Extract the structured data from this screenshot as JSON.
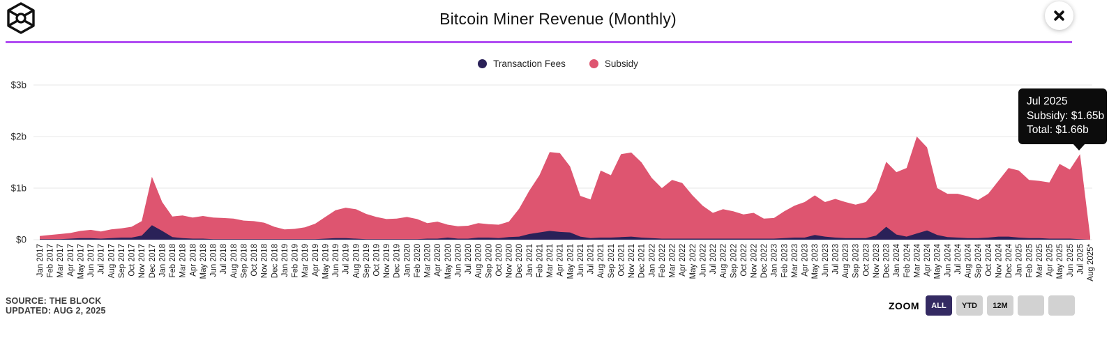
{
  "header": {
    "title": "Bitcoin Miner Revenue (Monthly)"
  },
  "legend": {
    "items": [
      {
        "label": "Transaction Fees",
        "color": "#2a2158"
      },
      {
        "label": "Subsidy",
        "color": "#de5570"
      }
    ]
  },
  "tooltip": {
    "date": "Jul 2025",
    "subsidy_line": "Subsidy: $1.65b",
    "total_line": "Total: $1.66b"
  },
  "footer": {
    "source": "SOURCE: THE BLOCK",
    "updated": "UPDATED: AUG 2, 2025"
  },
  "zoom_controls": {
    "label": "ZOOM",
    "buttons": [
      {
        "label": "ALL",
        "active": true
      },
      {
        "label": "YTD",
        "active": false
      },
      {
        "label": "12M",
        "active": false
      },
      {
        "label": "",
        "active": false
      },
      {
        "label": "",
        "active": false
      }
    ]
  },
  "colors": {
    "divider": "#b04cf2",
    "active_button_bg": "#342a62",
    "grid": "#e7e7e7",
    "axis_text": "#2e2e2e"
  },
  "chart_data": {
    "type": "area",
    "stacked": true,
    "title": "Bitcoin Miner Revenue (Monthly)",
    "xlabel": "",
    "ylabel": "",
    "ylim": [
      0,
      3
    ],
    "grid": "horizontal",
    "legend_position": "top",
    "yticks": [
      {
        "value": 0,
        "label": "$0"
      },
      {
        "value": 1,
        "label": "$1b"
      },
      {
        "value": 2,
        "label": "$2b"
      },
      {
        "value": 3,
        "label": "$3b"
      }
    ],
    "unit": "$ billions",
    "categories": [
      "Jan 2017",
      "Feb 2017",
      "Mar 2017",
      "Apr 2017",
      "May 2017",
      "Jun 2017",
      "Jul 2017",
      "Aug 2017",
      "Sep 2017",
      "Oct 2017",
      "Nov 2017",
      "Dec 2017",
      "Jan 2018",
      "Feb 2018",
      "Mar 2018",
      "Apr 2018",
      "May 2018",
      "Jun 2018",
      "Jul 2018",
      "Aug 2018",
      "Sep 2018",
      "Oct 2018",
      "Nov 2018",
      "Dec 2018",
      "Jan 2019",
      "Feb 2019",
      "Mar 2019",
      "Apr 2019",
      "May 2019",
      "Jun 2019",
      "Jul 2019",
      "Aug 2019",
      "Sep 2019",
      "Oct 2019",
      "Nov 2019",
      "Dec 2019",
      "Jan 2020",
      "Feb 2020",
      "Mar 2020",
      "Apr 2020",
      "May 2020",
      "Jun 2020",
      "Jul 2020",
      "Aug 2020",
      "Sep 2020",
      "Oct 2020",
      "Nov 2020",
      "Dec 2020",
      "Jan 2021",
      "Feb 2021",
      "Mar 2021",
      "Apr 2021",
      "May 2021",
      "Jun 2021",
      "Jul 2021",
      "Aug 2021",
      "Sep 2021",
      "Oct 2021",
      "Nov 2021",
      "Dec 2021",
      "Jan 2022",
      "Feb 2022",
      "Mar 2022",
      "Apr 2022",
      "May 2022",
      "Jun 2022",
      "Jul 2022",
      "Aug 2022",
      "Sep 2022",
      "Oct 2022",
      "Nov 2022",
      "Dec 2022",
      "Jan 2023",
      "Feb 2023",
      "Mar 2023",
      "Apr 2023",
      "May 2023",
      "Jun 2023",
      "Jul 2023",
      "Aug 2023",
      "Sep 2023",
      "Oct 2023",
      "Nov 2023",
      "Dec 2023",
      "Jan 2024",
      "Feb 2024",
      "Mar 2024",
      "Apr 2024",
      "May 2024",
      "Jun 2024",
      "Jul 2024",
      "Aug 2024",
      "Sep 2024",
      "Oct 2024",
      "Nov 2024",
      "Dec 2024",
      "Jan 2025",
      "Feb 2025",
      "Mar 2025",
      "Apr 2025",
      "May 2025",
      "Jun 2025",
      "Jul 2025",
      "Aug 2025*"
    ],
    "series": [
      {
        "name": "Transaction Fees",
        "color": "#2a2158",
        "values": [
          0.01,
          0.01,
          0.01,
          0.02,
          0.03,
          0.03,
          0.02,
          0.03,
          0.04,
          0.04,
          0.08,
          0.28,
          0.17,
          0.05,
          0.03,
          0.02,
          0.02,
          0.01,
          0.01,
          0.01,
          0.01,
          0.01,
          0.01,
          0.01,
          0.01,
          0.01,
          0.01,
          0.01,
          0.02,
          0.03,
          0.03,
          0.02,
          0.01,
          0.01,
          0.01,
          0.01,
          0.01,
          0.01,
          0.02,
          0.02,
          0.04,
          0.02,
          0.02,
          0.04,
          0.04,
          0.03,
          0.05,
          0.06,
          0.11,
          0.14,
          0.17,
          0.15,
          0.14,
          0.06,
          0.03,
          0.04,
          0.04,
          0.05,
          0.06,
          0.04,
          0.03,
          0.02,
          0.02,
          0.02,
          0.02,
          0.02,
          0.02,
          0.02,
          0.02,
          0.02,
          0.02,
          0.02,
          0.02,
          0.03,
          0.04,
          0.04,
          0.09,
          0.06,
          0.04,
          0.03,
          0.03,
          0.03,
          0.08,
          0.25,
          0.1,
          0.06,
          0.12,
          0.18,
          0.09,
          0.05,
          0.04,
          0.03,
          0.03,
          0.04,
          0.06,
          0.06,
          0.04,
          0.03,
          0.03,
          0.02,
          0.02,
          0.02,
          0.01,
          0.0
        ]
      },
      {
        "name": "Subsidy",
        "color": "#de5570",
        "values": [
          0.06,
          0.08,
          0.1,
          0.11,
          0.14,
          0.16,
          0.14,
          0.17,
          0.18,
          0.21,
          0.28,
          0.94,
          0.56,
          0.4,
          0.44,
          0.41,
          0.44,
          0.42,
          0.41,
          0.4,
          0.36,
          0.35,
          0.32,
          0.24,
          0.19,
          0.2,
          0.23,
          0.3,
          0.42,
          0.54,
          0.59,
          0.57,
          0.49,
          0.43,
          0.39,
          0.4,
          0.43,
          0.39,
          0.3,
          0.33,
          0.25,
          0.24,
          0.25,
          0.28,
          0.26,
          0.26,
          0.3,
          0.54,
          0.84,
          1.11,
          1.53,
          1.53,
          1.28,
          0.79,
          0.75,
          1.3,
          1.21,
          1.61,
          1.63,
          1.46,
          1.17,
          0.98,
          1.14,
          1.08,
          0.84,
          0.64,
          0.5,
          0.57,
          0.53,
          0.47,
          0.5,
          0.39,
          0.4,
          0.52,
          0.62,
          0.69,
          0.77,
          0.67,
          0.75,
          0.7,
          0.65,
          0.7,
          0.88,
          1.26,
          1.21,
          1.33,
          1.88,
          1.61,
          0.91,
          0.84,
          0.85,
          0.81,
          0.74,
          0.85,
          1.08,
          1.33,
          1.3,
          1.13,
          1.11,
          1.09,
          1.45,
          1.34,
          1.65,
          0.06
        ]
      }
    ]
  }
}
